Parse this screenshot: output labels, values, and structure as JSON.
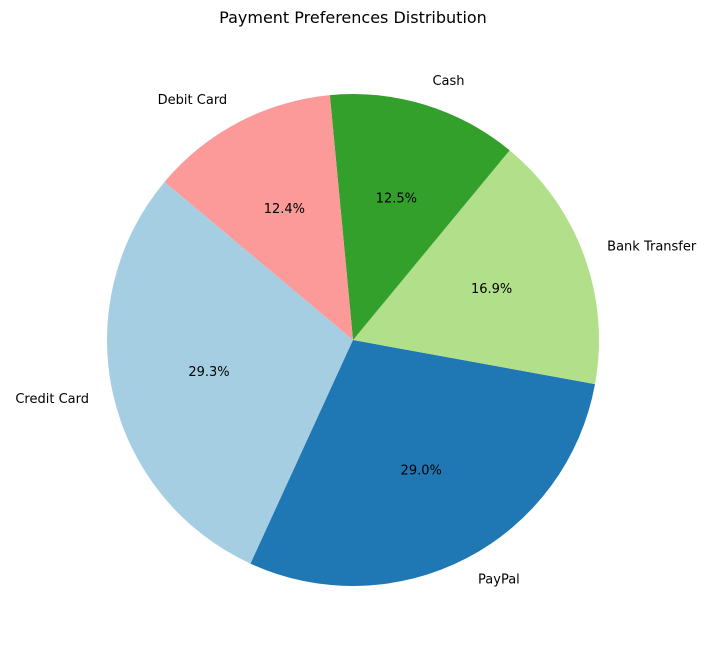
{
  "chart_data": {
    "type": "pie",
    "title": "Payment Preferences Distribution",
    "categories": [
      "Credit Card",
      "PayPal",
      "Bank Transfer",
      "Cash",
      "Debit Card"
    ],
    "values": [
      29.3,
      29.0,
      16.9,
      12.5,
      12.4
    ],
    "value_labels": [
      "29.3%",
      "29.0%",
      "16.9%",
      "12.5%",
      "12.4%"
    ],
    "colors": [
      "#a6cee3",
      "#1f78b4",
      "#b2df8a",
      "#33a02c",
      "#fb9a99"
    ],
    "start_angle_deg": 140,
    "direction": "counterclockwise",
    "legend": "none"
  }
}
